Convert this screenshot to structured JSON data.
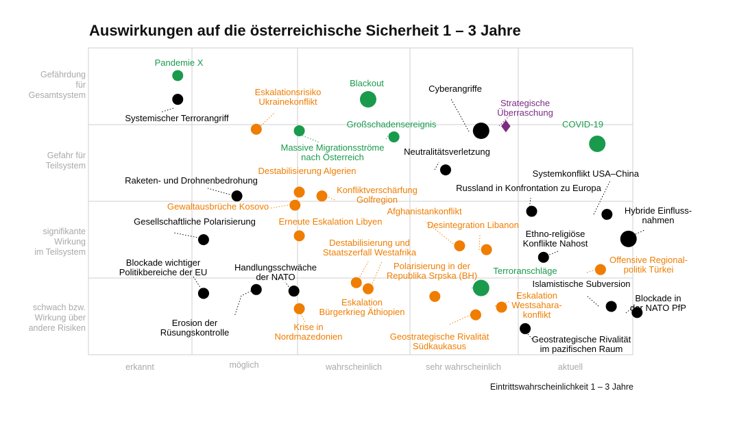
{
  "chart_data": {
    "type": "scatter",
    "title": "Auswirkungen auf die österreichische Sicherheit 1 – 3 Jahre",
    "xlabel": "Eintrittswahrscheinlichkeit 1 – 3 Jahre",
    "ylabel": "",
    "x_categories": [
      "erkannt",
      "möglich",
      "wahrscheinlich",
      "sehr wahrscheinlich",
      "aktuell"
    ],
    "y_categories": [
      [
        "Gefährdung",
        "für",
        "Gesamtsystem"
      ],
      [
        "Gefahr für",
        "Teilsystem"
      ],
      [
        "signifikante",
        "Wirkung",
        "im Teilsystem"
      ],
      [
        "schwach bzw.",
        "Wirkung über",
        "andere Risiken"
      ]
    ],
    "xlim": [
      0,
      5
    ],
    "ylim": [
      0,
      4
    ],
    "grid": true,
    "legend": "none",
    "colors": {
      "black": "#000000",
      "green": "#1a9a4c",
      "orange": "#ef7d00",
      "purple": "#7b2d82",
      "grid": "#cfcfcf",
      "tick": "#a9a9a9"
    },
    "points": [
      {
        "label": "Pandemie X",
        "x": 0.83,
        "y": 3.64,
        "color": "green",
        "size": "s"
      },
      {
        "label": "Systemischer Terrorangriff",
        "x": 0.83,
        "y": 3.33,
        "color": "black",
        "size": "s"
      },
      {
        "label": "Eskalationsrisiko Ukrainekonflikt",
        "x": 1.56,
        "y": 2.94,
        "color": "orange",
        "size": "s"
      },
      {
        "label": "Massive Migrationsströme nach Österreich",
        "x": 1.96,
        "y": 2.92,
        "color": "green",
        "size": "s"
      },
      {
        "label": "Blackout",
        "x": 2.6,
        "y": 3.33,
        "color": "green",
        "size": "l"
      },
      {
        "label": "Großschadensereignis",
        "x": 2.84,
        "y": 2.84,
        "color": "green",
        "size": "s"
      },
      {
        "label": "Cyberangriffe",
        "x": 3.65,
        "y": 2.92,
        "color": "black",
        "size": "l"
      },
      {
        "label": "Strategische Überraschung",
        "x": 3.88,
        "y": 2.98,
        "color": "purple",
        "size": "diamond"
      },
      {
        "label": "COVID-19",
        "x": 4.73,
        "y": 2.75,
        "color": "green",
        "size": "l"
      },
      {
        "label": "Neutralitätsverletzung",
        "x": 3.32,
        "y": 2.41,
        "color": "black",
        "size": "s"
      },
      {
        "label": "Destabilisierung Algerien",
        "x": 1.96,
        "y": 2.12,
        "color": "orange",
        "size": "s"
      },
      {
        "label": "Raketen- und Drohnenbedrohung",
        "x": 1.38,
        "y": 2.07,
        "color": "black",
        "size": "s"
      },
      {
        "label": "Konfliktverschärfung Golfregion",
        "x": 2.17,
        "y": 2.07,
        "color": "orange",
        "size": "s"
      },
      {
        "label": "Gewaltausbrüche Kosovo",
        "x": 1.92,
        "y": 1.95,
        "color": "orange",
        "size": "s"
      },
      {
        "label": "Russland in Konfrontation zu Europa",
        "x": 4.12,
        "y": 1.87,
        "color": "black",
        "size": "s"
      },
      {
        "label": "Systemkonflikt USA–China",
        "x": 4.82,
        "y": 1.83,
        "color": "black",
        "size": "s"
      },
      {
        "label": "Gesellschaftliche Polarisierung",
        "x": 1.07,
        "y": 1.5,
        "color": "black",
        "size": "s"
      },
      {
        "label": "Erneute Eskalation Libyen",
        "x": 1.96,
        "y": 1.55,
        "color": "orange",
        "size": "s"
      },
      {
        "label": "Afghanistankonflikt",
        "x": 3.45,
        "y": 1.42,
        "color": "orange",
        "size": "s"
      },
      {
        "label": "Desintegration Libanon",
        "x": 3.7,
        "y": 1.37,
        "color": "orange",
        "size": "s"
      },
      {
        "label": "Hybride Einflussnahmen",
        "x": 5.02,
        "y": 1.51,
        "color": "black",
        "size": "l"
      },
      {
        "label": "Ethno-religiöse Konflikte Nahost",
        "x": 4.23,
        "y": 1.27,
        "color": "black",
        "size": "s"
      },
      {
        "label": "Offensive Regionalpolitik Türkei",
        "x": 4.76,
        "y": 1.11,
        "color": "orange",
        "size": "s"
      },
      {
        "label": "Blockade wichtiger Politikbereiche der EU",
        "x": 1.07,
        "y": 0.8,
        "color": "black",
        "size": "s"
      },
      {
        "label": "Handlungsschwäche der NATO",
        "x": 1.56,
        "y": 0.85,
        "color": "black",
        "size": "s"
      },
      {
        "label": "Handlungsschwäche der NATO",
        "x": 1.91,
        "y": 0.83,
        "color": "black",
        "size": "s"
      },
      {
        "label": "Destabilisierung und Staatszerfall Westafrika",
        "x": 2.49,
        "y": 0.94,
        "color": "orange",
        "size": "s"
      },
      {
        "label": "Eskalation Bürgerkrieg Äthiopien",
        "x": 2.6,
        "y": 0.86,
        "color": "orange",
        "size": "s"
      },
      {
        "label": "Polarisierung in der Republika Srpska (BH)",
        "x": 3.22,
        "y": 0.76,
        "color": "orange",
        "size": "s"
      },
      {
        "label": "Terroranschläge",
        "x": 3.65,
        "y": 0.87,
        "color": "green",
        "size": "l"
      },
      {
        "label": "Eskalation Westsaharakonflikt",
        "x": 3.84,
        "y": 0.62,
        "color": "orange",
        "size": "s"
      },
      {
        "label": "Krise in Nordmazedonien",
        "x": 1.96,
        "y": 0.6,
        "color": "orange",
        "size": "s"
      },
      {
        "label": "Geostrategische Rivalität Südkaukasus",
        "x": 3.6,
        "y": 0.52,
        "color": "orange",
        "size": "s"
      },
      {
        "label": "Islamistische Subversion",
        "x": 4.86,
        "y": 0.63,
        "color": "black",
        "size": "s"
      },
      {
        "label": "Blockade in der NATO PfP",
        "x": 5.1,
        "y": 0.55,
        "color": "black",
        "size": "s"
      },
      {
        "label": "Geostrategische Rivalität im pazifischen Raum",
        "x": 4.06,
        "y": 0.34,
        "color": "black",
        "size": "s"
      },
      {
        "label": "Erosion der Rüsungskontrolle",
        "x": 1.07,
        "y": 0.8,
        "color": "black",
        "size": "s"
      }
    ],
    "annotations": [
      {
        "lines": [
          "Pandemie X"
        ],
        "color": "green"
      },
      {
        "lines": [
          "Systemischer Terrorangriff"
        ],
        "color": "black"
      },
      {
        "lines": [
          "Eskalationsrisiko",
          "Ukrainekonflikt"
        ],
        "color": "orange"
      },
      {
        "lines": [
          "Blackout"
        ],
        "color": "green"
      },
      {
        "lines": [
          "Cyberangriffe"
        ],
        "color": "black"
      },
      {
        "lines": [
          "Strategische",
          "Überraschung"
        ],
        "color": "purple"
      },
      {
        "lines": [
          "COVID-19"
        ],
        "color": "green"
      },
      {
        "lines": [
          "Großschadensereignis"
        ],
        "color": "green"
      },
      {
        "lines": [
          "Massive Migrationsströme",
          "nach Österreich"
        ],
        "color": "green"
      },
      {
        "lines": [
          "Neutralitätsverletzung"
        ],
        "color": "black"
      },
      {
        "lines": [
          "Destabilisierung Algerien"
        ],
        "color": "orange"
      },
      {
        "lines": [
          "Raketen- und Drohnenbedrohung"
        ],
        "color": "black"
      },
      {
        "lines": [
          "Konfliktverschärfung",
          "Golfregion"
        ],
        "color": "orange"
      },
      {
        "lines": [
          "Gewaltausbrüche Kosovo"
        ],
        "color": "orange"
      },
      {
        "lines": [
          "Systemkonflikt USA–China"
        ],
        "color": "black"
      },
      {
        "lines": [
          "Russland in Konfrontation zu Europa"
        ],
        "color": "black"
      },
      {
        "lines": [
          "Afghanistankonflikt"
        ],
        "color": "orange"
      },
      {
        "lines": [
          "Hybride Einfluss-",
          "nahmen"
        ],
        "color": "black"
      },
      {
        "lines": [
          "Gesellschaftliche Polarisierung"
        ],
        "color": "black"
      },
      {
        "lines": [
          "Erneute Eskalation Libyen"
        ],
        "color": "orange"
      },
      {
        "lines": [
          "Desintegration Libanon"
        ],
        "color": "orange"
      },
      {
        "lines": [
          "Ethno-religiöse",
          "Konflikte Nahost"
        ],
        "color": "black"
      },
      {
        "lines": [
          "Destabilisierung und",
          "Staatszerfall Westafrika"
        ],
        "color": "orange"
      },
      {
        "lines": [
          "Offensive Regional-",
          "politik Türkei"
        ],
        "color": "orange"
      },
      {
        "lines": [
          "Blockade wichtiger",
          "Politikbereiche der EU"
        ],
        "color": "black"
      },
      {
        "lines": [
          "Handlungsschwäche",
          "der NATO"
        ],
        "color": "black"
      },
      {
        "lines": [
          "Polarisierung in der",
          "Republika Srpska (BH)"
        ],
        "color": "orange"
      },
      {
        "lines": [
          "Terroranschläge"
        ],
        "color": "green"
      },
      {
        "lines": [
          "Islamistische Subversion"
        ],
        "color": "black"
      },
      {
        "lines": [
          "Eskalation",
          "Westsahara-",
          "konflikt"
        ],
        "color": "orange"
      },
      {
        "lines": [
          "Blockade in",
          "der NATO PfP"
        ],
        "color": "black"
      },
      {
        "lines": [
          "Eskalation",
          "Bürgerkrieg Äthiopien"
        ],
        "color": "orange"
      },
      {
        "lines": [
          "Erosion der",
          "Rüsungskontrolle"
        ],
        "color": "black"
      },
      {
        "lines": [
          "Krise in",
          "Nordmazedonien"
        ],
        "color": "orange"
      },
      {
        "lines": [
          "Geostrategische Rivalität",
          "Südkaukasus"
        ],
        "color": "orange"
      },
      {
        "lines": [
          "Geostrategische Rivalität",
          "im pazifischen Raum"
        ],
        "color": "black"
      }
    ]
  }
}
